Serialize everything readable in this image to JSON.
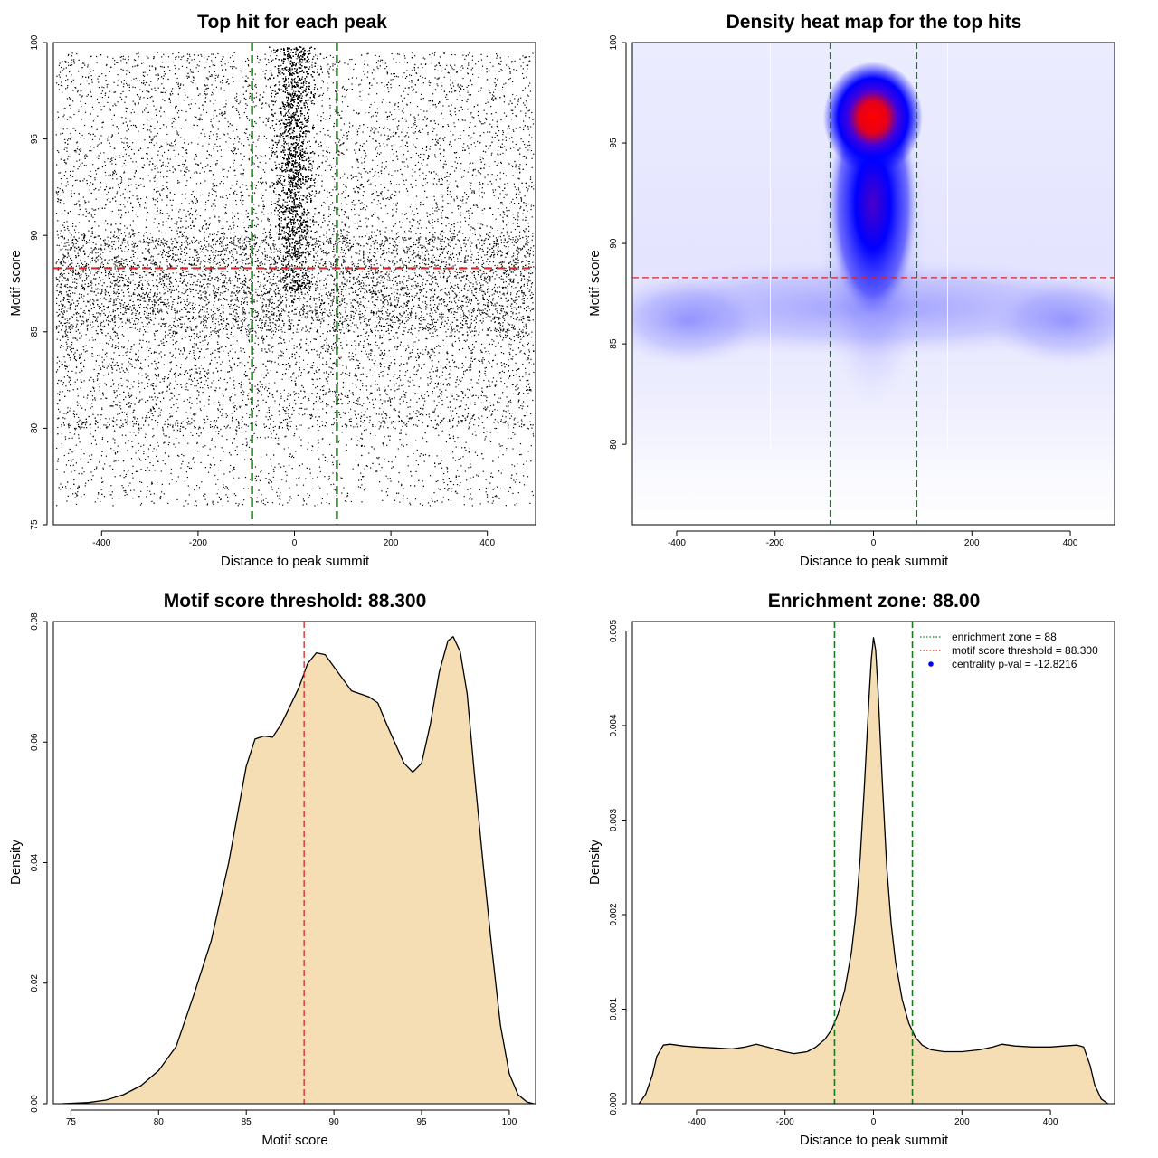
{
  "chart_data": [
    {
      "type": "scatter",
      "title": "Top hit for each peak",
      "xlabel": "Distance to peak summit",
      "ylabel": "Motif score",
      "xlim": [
        -500,
        500
      ],
      "ylim": [
        75,
        100
      ],
      "xticks": [
        "-400",
        "-200",
        "0",
        "200",
        "400"
      ],
      "yticks": [
        "75",
        "80",
        "85",
        "90",
        "95",
        "100"
      ],
      "points": {
        "description": "approx. 40000 points, dense band at motif score 85-90 across all distances, concentrated cluster near distance 0 from score 87 to 99.8",
        "x_range": [
          -495,
          495
        ],
        "y_range": [
          75.8,
          99.9
        ]
      },
      "hline": 88.3,
      "vlines": [
        -88,
        88
      ],
      "colors": {
        "points": "#000000",
        "hline": "#d62728",
        "vlines": "#1a7a1a"
      }
    },
    {
      "type": "heatmap",
      "title": "Density heat map for the top hits",
      "xlabel": "Distance to peak summit",
      "ylabel": "Motif score",
      "xlim": [
        -490,
        490
      ],
      "ylim": [
        76,
        100
      ],
      "xticks": [
        "-400",
        "-200",
        "0",
        "200",
        "400"
      ],
      "yticks": [
        "80",
        "85",
        "90",
        "95",
        "100"
      ],
      "peak": {
        "x": 0,
        "y": 96.9
      },
      "hline": 88.3,
      "vlines": [
        -88,
        88
      ],
      "colors": {
        "low": "#ffffff",
        "mid": "#0000ff",
        "high": "#ff0000",
        "hline": "#d62728",
        "vlines": "#1a7a1a"
      }
    },
    {
      "type": "area",
      "title": "Motif score threshold: 88.300",
      "xlabel": "Motif score",
      "ylabel": "Density",
      "xlim": [
        74,
        101.5
      ],
      "ylim": [
        0,
        0.08
      ],
      "xticks": [
        "75",
        "80",
        "85",
        "90",
        "95",
        "100"
      ],
      "yticks": [
        "0.00",
        "0.02",
        "0.04",
        "0.06",
        "0.08"
      ],
      "x": [
        74.5,
        76,
        77,
        78,
        79,
        80,
        81,
        82,
        83,
        84,
        85,
        85.5,
        86,
        86.5,
        87,
        87.5,
        88,
        88.5,
        89,
        89.5,
        90,
        91,
        92,
        92.5,
        93,
        94,
        94.5,
        95,
        95.5,
        96,
        96.5,
        96.8,
        97.2,
        97.6,
        98,
        98.5,
        99,
        99.5,
        100,
        100.5,
        101,
        101.4
      ],
      "y": [
        0,
        0.0002,
        0.0006,
        0.0015,
        0.003,
        0.0055,
        0.0095,
        0.018,
        0.027,
        0.04,
        0.056,
        0.0605,
        0.061,
        0.0608,
        0.063,
        0.066,
        0.069,
        0.073,
        0.0748,
        0.0745,
        0.0725,
        0.0685,
        0.0675,
        0.0665,
        0.063,
        0.0565,
        0.055,
        0.0565,
        0.063,
        0.0715,
        0.0768,
        0.0775,
        0.075,
        0.068,
        0.055,
        0.04,
        0.026,
        0.013,
        0.005,
        0.0015,
        0.0003,
        0
      ],
      "vline": 88.3,
      "colors": {
        "fill": "#f5deb3",
        "line": "#000000",
        "vline": "#d62728"
      }
    },
    {
      "type": "area",
      "title": "Enrichment zone: 88.00",
      "xlabel": "Distance to peak summit",
      "ylabel": "Density",
      "xlim": [
        -545,
        545
      ],
      "ylim": [
        0,
        0.0051
      ],
      "xticks": [
        "-400",
        "-200",
        "0",
        "200",
        "400"
      ],
      "yticks": [
        "0.000",
        "0.001",
        "0.002",
        "0.003",
        "0.004",
        "0.005"
      ],
      "x": [
        -530,
        -515,
        -500,
        -490,
        -475,
        -460,
        -430,
        -400,
        -360,
        -320,
        -290,
        -265,
        -240,
        -210,
        -180,
        -150,
        -130,
        -110,
        -95,
        -80,
        -65,
        -50,
        -40,
        -30,
        -20,
        -10,
        -5,
        0,
        5,
        10,
        20,
        30,
        40,
        50,
        65,
        80,
        95,
        110,
        130,
        160,
        200,
        240,
        270,
        290,
        320,
        360,
        400,
        430,
        460,
        475,
        490,
        500,
        515,
        530
      ],
      "y": [
        0,
        0.0001,
        0.0003,
        0.0005,
        0.00062,
        0.00063,
        0.00061,
        0.0006,
        0.00059,
        0.00058,
        0.0006,
        0.00063,
        0.0006,
        0.00056,
        0.00053,
        0.00055,
        0.0006,
        0.00068,
        0.00078,
        0.00095,
        0.0012,
        0.0016,
        0.002,
        0.0026,
        0.0034,
        0.0043,
        0.0047,
        0.00493,
        0.0048,
        0.0044,
        0.0034,
        0.0025,
        0.0019,
        0.0015,
        0.0011,
        0.00085,
        0.0007,
        0.00062,
        0.00057,
        0.00055,
        0.00055,
        0.00057,
        0.0006,
        0.00063,
        0.00061,
        0.0006,
        0.0006,
        0.00061,
        0.00062,
        0.0006,
        0.0004,
        0.0002,
        5e-05,
        0
      ],
      "vlines": [
        -88,
        88
      ],
      "colors": {
        "fill": "#f5deb3",
        "line": "#000000",
        "vlines": "#1a7a1a"
      },
      "legend": {
        "position": "top-right",
        "entries": [
          {
            "label": "enrichment zone = 88",
            "color": "#1a7a1a",
            "kind": "dotted-line"
          },
          {
            "label": "motif score threshold = 88.300",
            "color": "#d62728",
            "kind": "dotted-line"
          },
          {
            "label": "centrality p-val = -12.8216",
            "color": "#0000ff",
            "kind": "point"
          }
        ]
      }
    }
  ]
}
